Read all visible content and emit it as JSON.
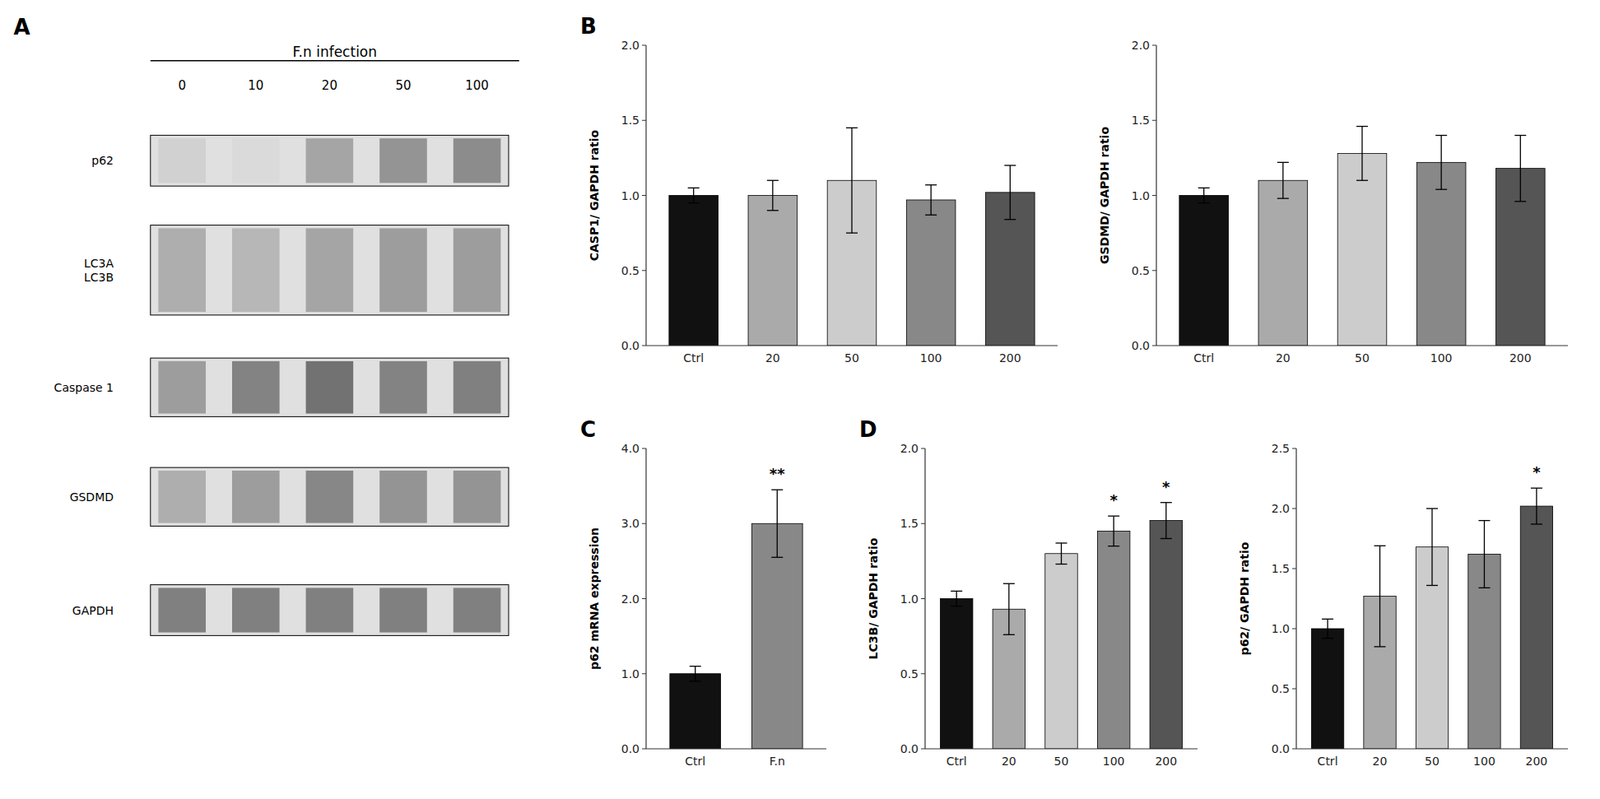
{
  "chart_data": [
    {
      "type": "blot",
      "annotations": [
        "A"
      ],
      "title": "F.n infection",
      "categories": [
        "0",
        "10",
        "20",
        "50",
        "100"
      ],
      "series": [
        {
          "name": "p62",
          "values": [
            0.25,
            0.2,
            0.5,
            0.6,
            0.65
          ]
        },
        {
          "name": "LC3A\nLC3B",
          "values": [
            0.45,
            0.4,
            0.5,
            0.55,
            0.55
          ]
        },
        {
          "name": "Caspase 1",
          "values": [
            0.55,
            0.7,
            0.8,
            0.7,
            0.72
          ]
        },
        {
          "name": "GSDMD",
          "values": [
            0.45,
            0.55,
            0.68,
            0.6,
            0.6
          ]
        },
        {
          "name": "GAPDH",
          "values": [
            0.72,
            0.72,
            0.72,
            0.72,
            0.72
          ]
        }
      ]
    },
    {
      "type": "bar",
      "annotations": [
        "B"
      ],
      "ylabel": "CASP1/ GAPDH ratio",
      "categories": [
        "Ctrl",
        "20",
        "50",
        "100",
        "200"
      ],
      "values": [
        1.0,
        1.0,
        1.1,
        0.97,
        1.02
      ],
      "errors": [
        0.05,
        0.1,
        0.35,
        0.1,
        0.18
      ],
      "colors": [
        "#111111",
        "#aaaaaa",
        "#cccccc",
        "#888888",
        "#555555"
      ],
      "ylim": [
        0,
        2.0
      ],
      "yticks": [
        {
          "value": 0.0,
          "label": "0.0"
        },
        0.5,
        {
          "value": 1.0,
          "label": "1.0"
        },
        1.5,
        {
          "value": 2.0,
          "label": "2.0"
        }
      ],
      "grid": false
    },
    {
      "type": "bar",
      "ylabel": "GSDMD/ GAPDH ratio",
      "categories": [
        "Ctrl",
        "20",
        "50",
        "100",
        "200"
      ],
      "values": [
        1.0,
        1.1,
        1.28,
        1.22,
        1.18
      ],
      "errors": [
        0.05,
        0.12,
        0.18,
        0.18,
        0.22
      ],
      "colors": [
        "#111111",
        "#aaaaaa",
        "#cccccc",
        "#888888",
        "#555555"
      ],
      "ylim": [
        0,
        2.0
      ],
      "yticks": [
        {
          "value": 0.0,
          "label": "0.0"
        },
        0.5,
        {
          "value": 1.0,
          "label": "1.0"
        },
        1.5,
        {
          "value": 2.0,
          "label": "2.0"
        }
      ],
      "grid": false
    },
    {
      "type": "bar",
      "annotations": [
        "C"
      ],
      "ylabel": "p62 mRNA expression",
      "categories": [
        "Ctrl",
        "F.n"
      ],
      "values": [
        1.0,
        3.0
      ],
      "errors": [
        0.1,
        0.45
      ],
      "colors": [
        "#111111",
        "#888888"
      ],
      "ylim": [
        0,
        4.0
      ],
      "yticks": [
        {
          "value": 0,
          "label": "0.0"
        },
        {
          "value": 1,
          "label": "1.0"
        },
        {
          "value": 2,
          "label": "2.0"
        },
        {
          "value": 3,
          "label": "3.0"
        },
        {
          "value": 4,
          "label": "4.0"
        }
      ],
      "significance": [
        null,
        "**"
      ],
      "grid": false
    },
    {
      "type": "bar",
      "annotations": [
        "D"
      ],
      "ylabel": "LC3B/ GAPDH ratio",
      "categories": [
        "Ctrl",
        "20",
        "50",
        "100",
        "200"
      ],
      "values": [
        1.0,
        0.93,
        1.3,
        1.45,
        1.52
      ],
      "errors": [
        0.05,
        0.17,
        0.07,
        0.1,
        0.12
      ],
      "colors": [
        "#111111",
        "#aaaaaa",
        "#cccccc",
        "#888888",
        "#555555"
      ],
      "ylim": [
        0,
        2.0
      ],
      "yticks": [
        {
          "value": 0.0,
          "label": "0.0"
        },
        0.5,
        {
          "value": 1.0,
          "label": "1.0"
        },
        1.5,
        {
          "value": 2.0,
          "label": "2.0"
        }
      ],
      "significance": [
        null,
        null,
        null,
        "*",
        "*"
      ],
      "grid": false
    },
    {
      "type": "bar",
      "ylabel": "p62/ GAPDH ratio",
      "categories": [
        "Ctrl",
        "20",
        "50",
        "100",
        "200"
      ],
      "values": [
        1.0,
        1.27,
        1.68,
        1.62,
        2.02
      ],
      "errors": [
        0.08,
        0.42,
        0.32,
        0.28,
        0.15
      ],
      "colors": [
        "#111111",
        "#aaaaaa",
        "#cccccc",
        "#888888",
        "#555555"
      ],
      "ylim": [
        0,
        2.5
      ],
      "yticks": [
        {
          "value": 0.0,
          "label": "0.0"
        },
        0.5,
        {
          "value": 1.0,
          "label": "1.0"
        },
        1.5,
        {
          "value": 2.0,
          "label": "2.0"
        },
        2.5
      ],
      "significance": [
        null,
        null,
        null,
        null,
        "*"
      ],
      "grid": false
    }
  ]
}
